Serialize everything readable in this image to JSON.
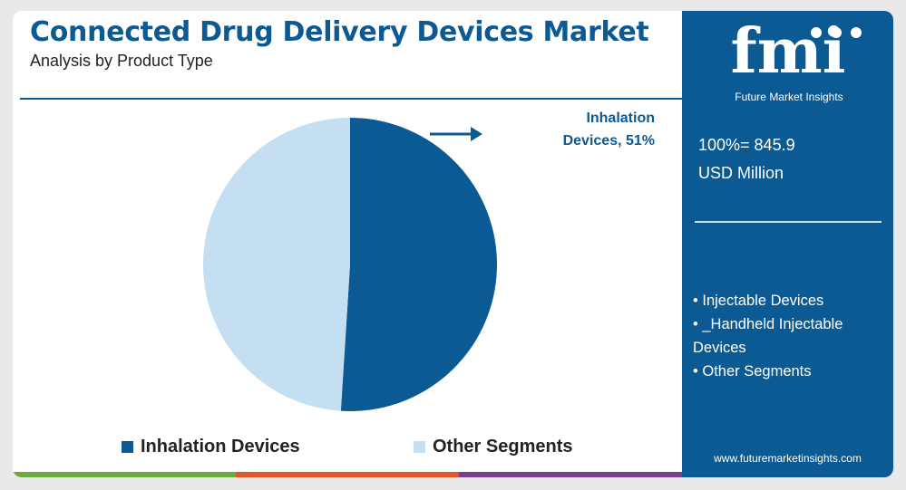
{
  "header": {
    "title": "Connected Drug Delivery Devices Market",
    "subtitle": "Analysis by Product Type"
  },
  "callout": {
    "line1": "Inhalation",
    "line2": "Devices, 51%"
  },
  "legend": [
    {
      "label": "Inhalation Devices",
      "color": "#0c5a94"
    },
    {
      "label": "Other Segments",
      "color": "#c5dff2"
    }
  ],
  "sidebar": {
    "logo_text": "fmi",
    "logo_caption": "Future Market Insights",
    "total_line1": "100%= 845.9",
    "total_line2": "USD Million",
    "segments": [
      "• Injectable Devices",
      "• _Handheld Injectable Devices",
      "• Other Segments"
    ],
    "url": "www.futuremarketinsights.com"
  },
  "colors": {
    "brand": "#0c5a94",
    "light": "#c5dff2",
    "bar": [
      "#6aab3e",
      "#e0592a",
      "#7a3d8c"
    ]
  },
  "chart_data": {
    "type": "pie",
    "title": "Connected Drug Delivery Devices Market",
    "subtitle": "Analysis by Product Type",
    "categories": [
      "Inhalation Devices",
      "Other Segments"
    ],
    "values": [
      51,
      49
    ],
    "unit": "%",
    "total": "845.9 USD Million",
    "legend_position": "bottom",
    "annotations": [
      "Inhalation Devices, 51%"
    ]
  }
}
